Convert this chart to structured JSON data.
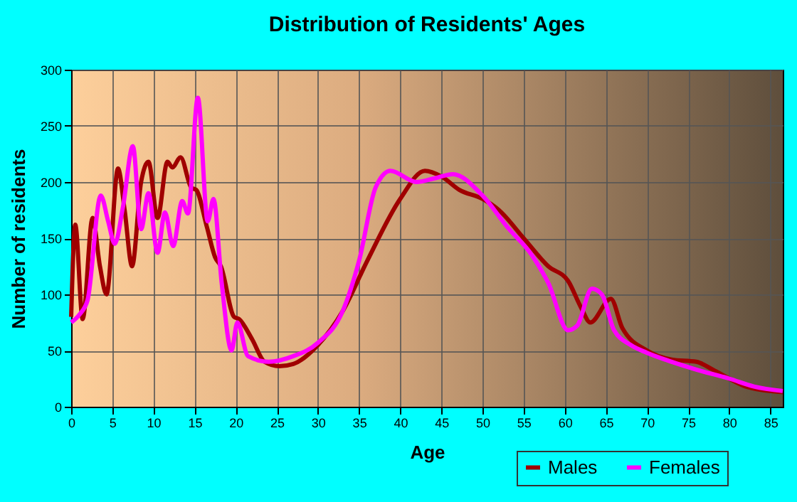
{
  "chart_data": {
    "type": "line",
    "title": "Distribution of Residents' Ages",
    "xlabel": "Age",
    "ylabel": "Number of residents",
    "xlim": [
      0,
      86.5
    ],
    "xticks": [
      0,
      5,
      10,
      15,
      20,
      25,
      30,
      35,
      40,
      45,
      50,
      55,
      60,
      65,
      70,
      75,
      80,
      85
    ],
    "ylim": [
      0,
      300
    ],
    "yticks": [
      0,
      50,
      100,
      150,
      200,
      250,
      300
    ],
    "grid": true,
    "legend": "bottom right",
    "line_style": "solid",
    "marker": "none",
    "series": [
      {
        "name": "Males",
        "color": "#a00000",
        "x": [
          0,
          0.5,
          1.4,
          2.6,
          3.5,
          4.3,
          5.7,
          6.5,
          7.4,
          8.5,
          9.4,
          10.5,
          11.7,
          12.3,
          13.3,
          14.6,
          15.2,
          16.5,
          17.5,
          18.2,
          19.8,
          20.4,
          22,
          23.5,
          25.3,
          27,
          30,
          33,
          36,
          40,
          43,
          45,
          47.2,
          50,
          52,
          55,
          58,
          60.4,
          62,
          63.1,
          65.6,
          67,
          70,
          73,
          76,
          78,
          80,
          82,
          86.5
        ],
        "values": [
          80,
          162,
          78,
          168,
          125,
          100,
          212,
          175,
          125,
          200,
          218,
          168,
          218,
          213,
          222,
          195,
          193,
          160,
          133,
          125,
          80,
          78,
          60,
          40,
          36,
          38,
          55,
          85,
          130,
          185,
          210,
          205,
          193,
          185,
          175,
          150,
          125,
          112,
          88,
          75,
          96,
          70,
          50,
          42,
          40,
          33,
          25,
          18,
          13
        ]
      },
      {
        "name": "Females",
        "color": "#ff00ff",
        "x": [
          0,
          1,
          2,
          3.6,
          4.5,
          5.3,
          6.3,
          7.5,
          8.5,
          9.4,
          10.5,
          11.4,
          12.4,
          13.5,
          14.2,
          15.4,
          16.6,
          17.3,
          18.3,
          19.5,
          20.2,
          21.5,
          24,
          27,
          30,
          33,
          35,
          37,
          38.8,
          42,
          44,
          46.4,
          50,
          53,
          56,
          58,
          60.4,
          61.5,
          63.3,
          64.5,
          66,
          68,
          70,
          73,
          76,
          80,
          83,
          86.5
        ],
        "values": [
          75,
          82,
          95,
          188,
          165,
          145,
          178,
          232,
          158,
          190,
          137,
          173,
          143,
          183,
          172,
          275,
          165,
          185,
          110,
          50,
          75,
          45,
          40,
          45,
          57,
          85,
          130,
          195,
          210,
          200,
          203,
          207,
          188,
          160,
          135,
          110,
          68,
          72,
          105,
          100,
          68,
          55,
          48,
          40,
          33,
          25,
          18,
          14
        ]
      }
    ]
  }
}
